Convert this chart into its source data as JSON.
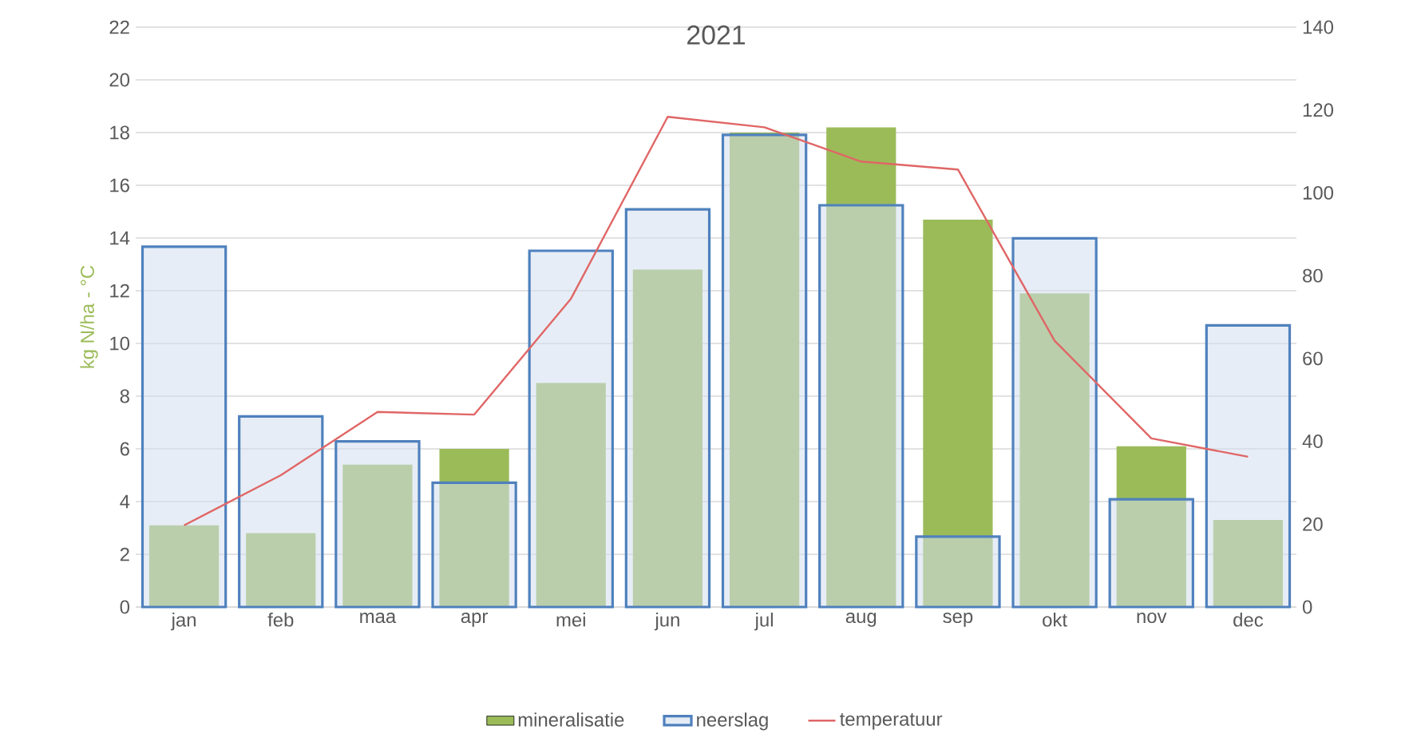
{
  "chart_data": {
    "type": "bar",
    "title": "2021",
    "ylabel": "kg N/ha - °C",
    "categories": [
      "jan",
      "feb",
      "maa",
      "apr",
      "mei",
      "jun",
      "jul",
      "aug",
      "sep",
      "okt",
      "nov",
      "dec"
    ],
    "series": [
      {
        "name": "mineralisatie",
        "color": "#9bbb59",
        "values": [
          3.1,
          2.8,
          5.4,
          6.0,
          8.5,
          12.8,
          18.0,
          18.2,
          14.7,
          11.9,
          6.1,
          3.3
        ]
      },
      {
        "name": "neerslag",
        "axis": "y2",
        "color": "#4f81bd",
        "values": [
          87,
          46,
          40,
          30,
          86,
          96,
          114,
          97,
          17,
          89,
          26,
          68
        ]
      },
      {
        "name": "temperatuur",
        "type": "line",
        "color": "#e06666",
        "values": [
          3.1,
          5.0,
          7.4,
          7.3,
          11.7,
          18.6,
          18.2,
          16.9,
          16.6,
          10.1,
          6.4,
          5.7
        ]
      }
    ],
    "ylim": [
      0,
      22
    ],
    "yticks": [
      0,
      2,
      4,
      6,
      8,
      10,
      12,
      14,
      16,
      18,
      20,
      22
    ],
    "y2lim": [
      0,
      140
    ],
    "y2ticks": [
      0,
      20,
      40,
      60,
      80,
      100,
      120,
      140
    ],
    "grid": "y",
    "legend": "bottom"
  }
}
